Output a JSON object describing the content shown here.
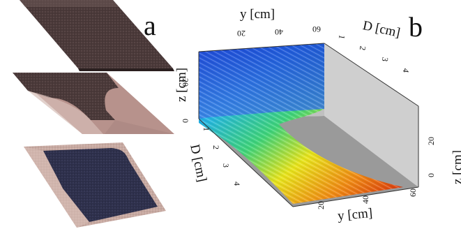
{
  "panel_a": {
    "letter": "a"
  },
  "panel_b": {
    "letter": "b",
    "axes": {
      "y_top": {
        "label": "y [cm]",
        "ticks": [
          "20",
          "40",
          "60"
        ]
      },
      "d_right": {
        "label": "D [cm]",
        "ticks": [
          "1",
          "2",
          "3",
          "4"
        ]
      },
      "z_left": {
        "label": "z [cm]",
        "ticks": [
          "0",
          "20"
        ]
      },
      "d_left": {
        "label": "D [cm]",
        "ticks": [
          "1",
          "2",
          "3",
          "4"
        ]
      },
      "y_bottom": {
        "label": "y [cm]",
        "ticks": [
          "20",
          "40",
          "60"
        ]
      },
      "z_right": {
        "label": "z [cm]",
        "ticks": [
          "0",
          "20"
        ]
      }
    }
  },
  "colors": {
    "layer_top": "#4b3a38",
    "layer_middle": "#5a4343",
    "layer_bottom": "#2d2f4a",
    "sand": "#cbb0a8",
    "surface_low": "#d4260e",
    "surface_mid": "#f2e21a",
    "surface_high": "#1f4fd6"
  }
}
